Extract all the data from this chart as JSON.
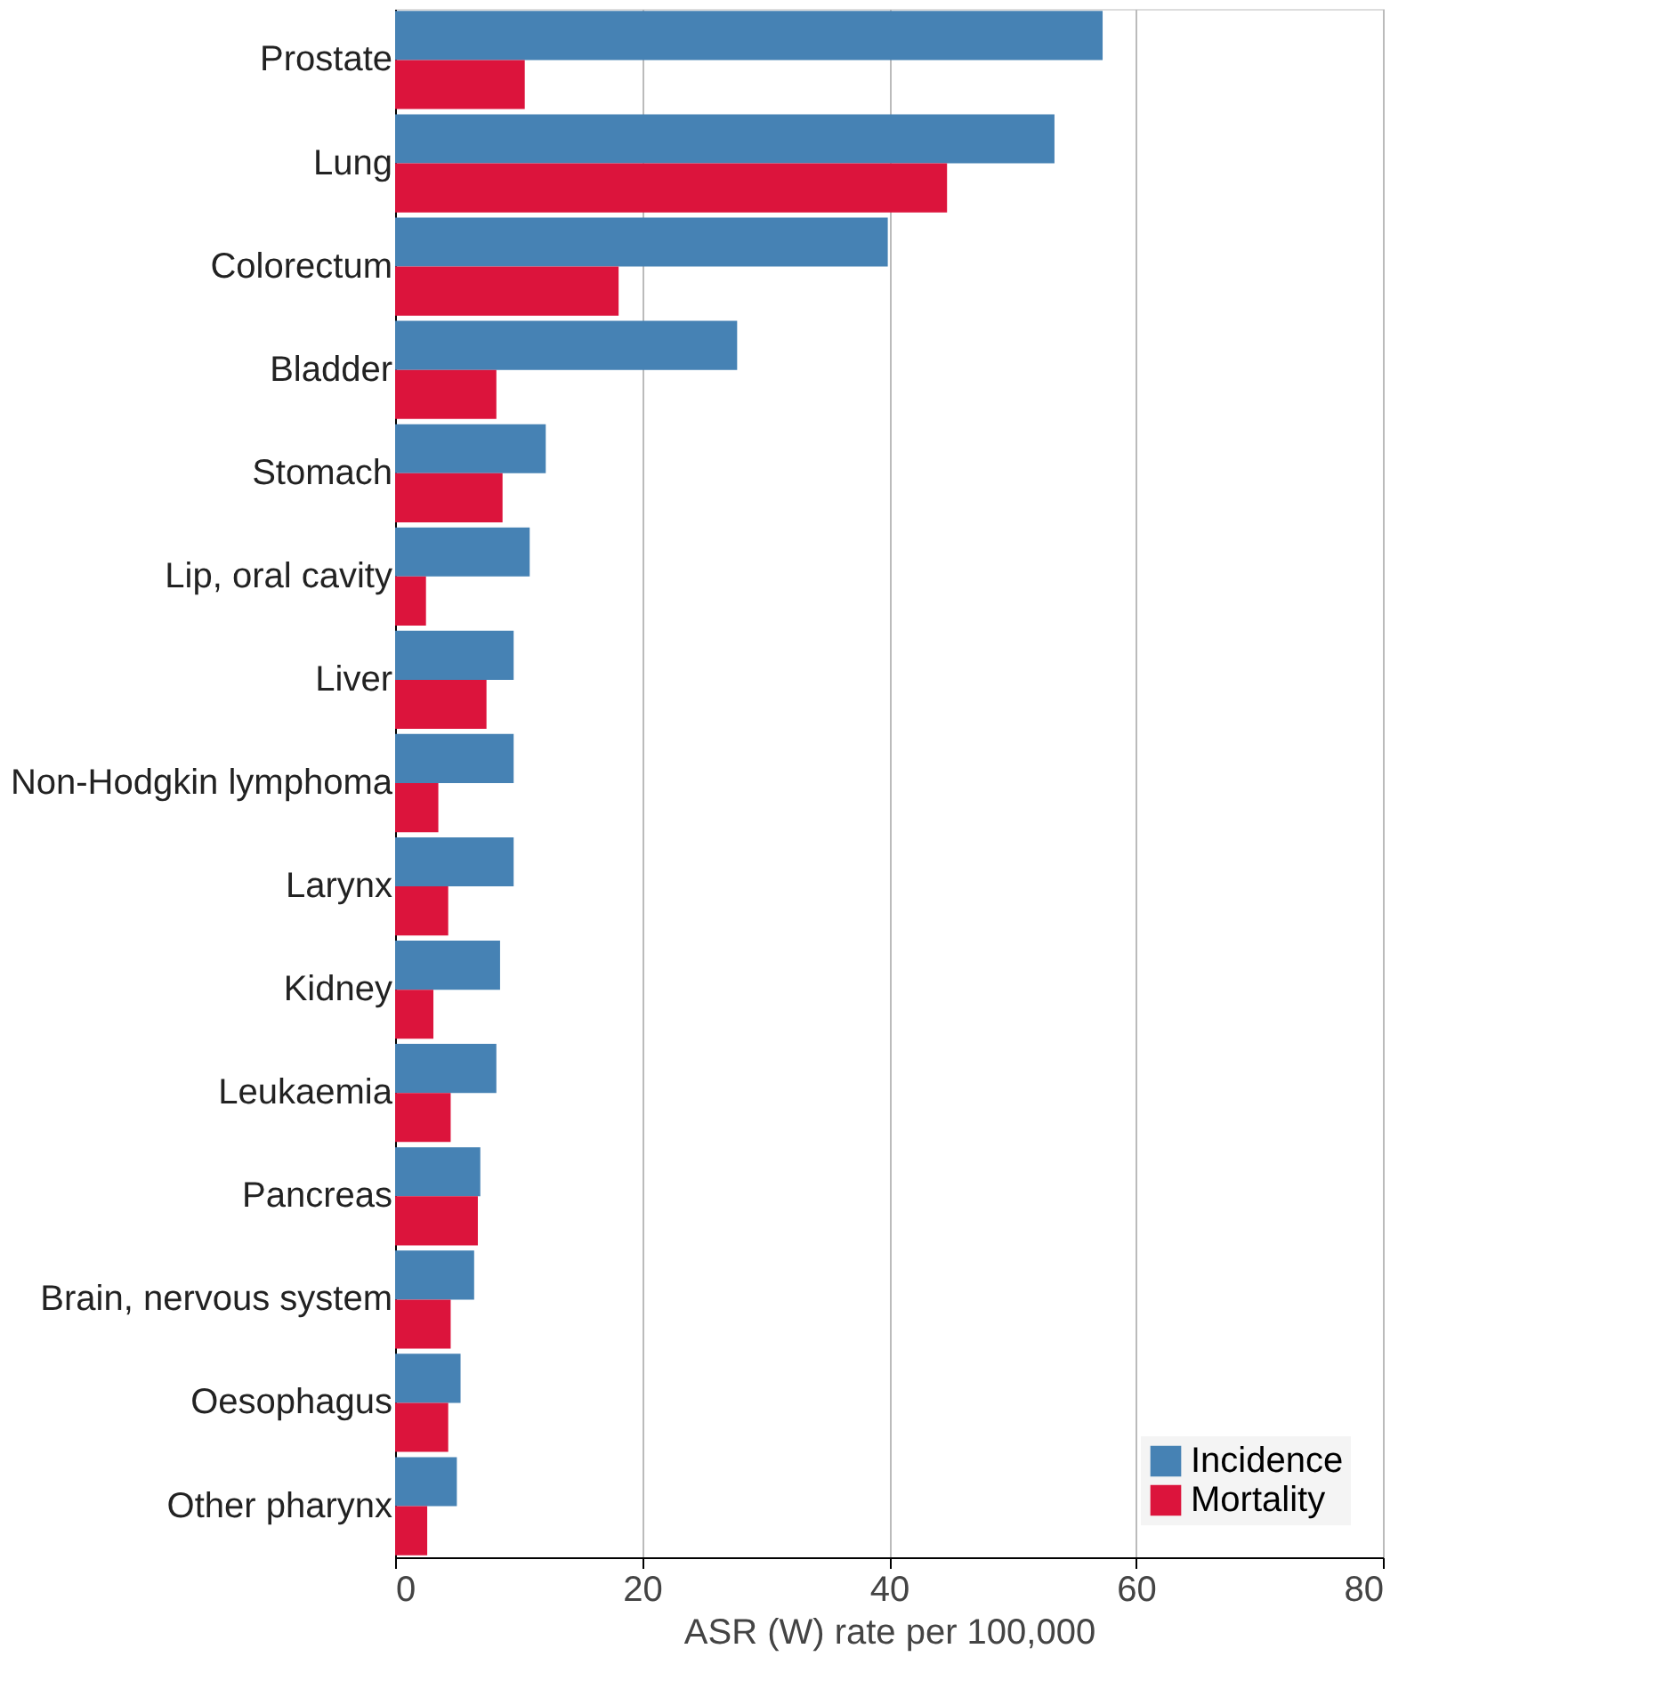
{
  "chart_data": {
    "type": "bar",
    "orientation": "horizontal",
    "xlabel": "ASR (W) rate per 100,000",
    "categories": [
      "Prostate",
      "Lung",
      "Colorectum",
      "Bladder",
      "Stomach",
      "Lip, oral cavity",
      "Liver",
      "Non-Hodgkin lymphoma",
      "Larynx",
      "Kidney",
      "Leukaemia",
      "Pancreas",
      "Brain, nervous system",
      "Oesophagus",
      "Other pharynx"
    ],
    "series": [
      {
        "name": "Incidence",
        "color": "#4682b4",
        "values": [
          57.3,
          53.4,
          39.9,
          27.7,
          12.2,
          10.9,
          9.6,
          9.6,
          9.6,
          8.5,
          8.2,
          6.9,
          6.4,
          5.3,
          5.0
        ]
      },
      {
        "name": "Mortality",
        "color": "#dc143c",
        "values": [
          10.5,
          44.7,
          18.1,
          8.2,
          8.7,
          2.5,
          7.4,
          3.5,
          4.3,
          3.1,
          4.5,
          6.7,
          4.5,
          4.3,
          2.6
        ]
      }
    ],
    "xlim": [
      0,
      80
    ],
    "xticks": [
      0,
      20,
      40,
      60,
      80
    ],
    "grid": "x",
    "legend": "bottom right"
  }
}
